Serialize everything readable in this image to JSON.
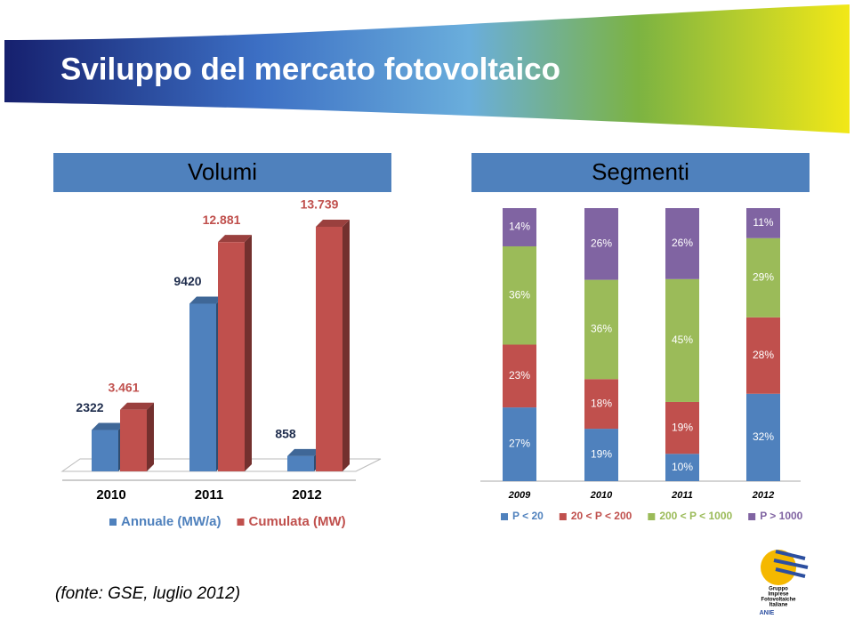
{
  "title": "Sviluppo del mercato fotovoltaico",
  "source": "(fonte: GSE, luglio 2012)",
  "logo": [
    "Gruppo",
    "Imprese",
    "Fotovoltaiche",
    "Italiane",
    "ANIE"
  ],
  "chart_data": [
    {
      "type": "bar3d",
      "title": "Volumi",
      "categories": [
        "2010",
        "2011",
        "2012"
      ],
      "series": [
        {
          "name": "Annuale (MW/a)",
          "color": "#4f81bd",
          "values": [
            2322,
            9420,
            858
          ]
        },
        {
          "name": "Cumulata (MW)",
          "color": "#c0504d",
          "values": [
            3461,
            12881,
            13739
          ],
          "value_labels": [
            "3.461",
            "12.881",
            "13.739"
          ]
        }
      ]
    },
    {
      "type": "stacked_bar",
      "title": "Segmenti",
      "categories": [
        "2009",
        "2010",
        "2011",
        "2012"
      ],
      "series": [
        {
          "name": "P < 20",
          "color": "#4f81bd",
          "values": [
            27,
            19,
            10,
            32
          ],
          "value_labels": [
            "27%",
            "19%",
            "10%",
            "32%"
          ]
        },
        {
          "name": "20 < P < 200",
          "color": "#c0504d",
          "values": [
            23,
            18,
            19,
            28
          ],
          "value_labels": [
            "23%",
            "18%",
            "19%",
            "28%"
          ]
        },
        {
          "name": "200 < P < 1000",
          "color": "#9bbb59",
          "values": [
            36,
            36,
            45,
            29
          ],
          "value_labels": [
            "36%",
            "36%",
            "45%",
            "29%"
          ]
        },
        {
          "name": "P > 1000",
          "color": "#8064a2",
          "values": [
            14,
            26,
            26,
            11
          ],
          "value_labels": [
            "14%",
            "26%",
            "26%",
            "11%"
          ]
        }
      ]
    }
  ]
}
